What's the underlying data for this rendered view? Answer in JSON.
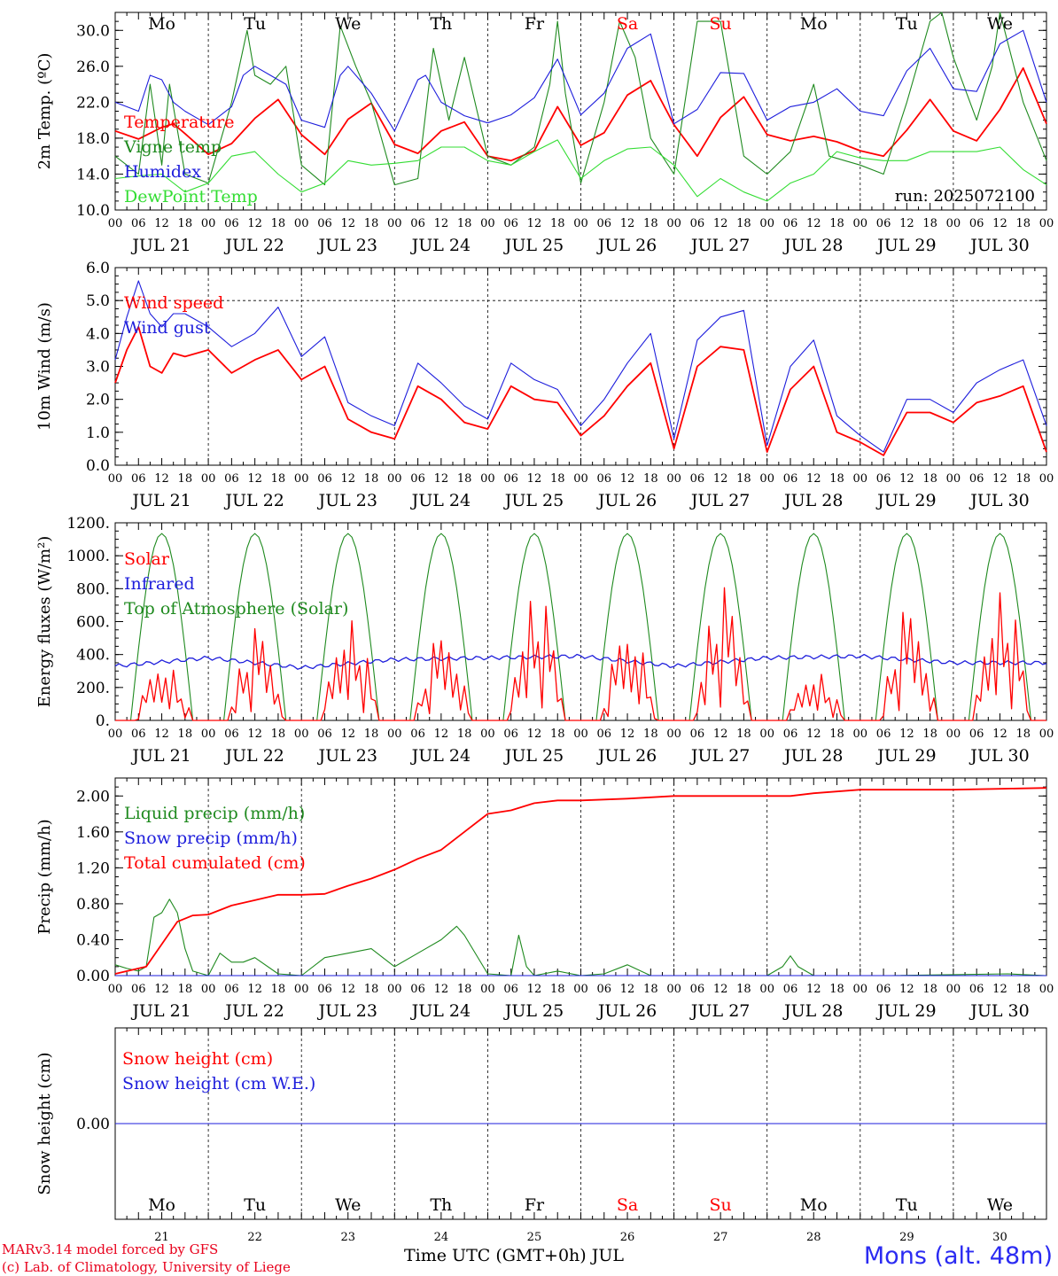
{
  "run_label": "run: 2025072100",
  "footer": {
    "model": "MARv3.14 model forced by GFS",
    "credit": "(c) Lab. of Climatology, University of Liege",
    "time_axis": "Time UTC (GMT+0h) JUL",
    "station": "Mons (alt. 48m)"
  },
  "colors": {
    "red": "#ff0000",
    "green": "#1f8a1f",
    "blue": "#1e1edc",
    "light_green": "#33dd33",
    "weekend": "#ff0000"
  },
  "days": [
    {
      "dow": "Mo",
      "date": "JUL 21",
      "num": "21",
      "weekend": false
    },
    {
      "dow": "Tu",
      "date": "JUL 22",
      "num": "22",
      "weekend": false
    },
    {
      "dow": "We",
      "date": "JUL 23",
      "num": "23",
      "weekend": false
    },
    {
      "dow": "Th",
      "date": "JUL 24",
      "num": "24",
      "weekend": false
    },
    {
      "dow": "Fr",
      "date": "JUL 25",
      "num": "25",
      "weekend": false
    },
    {
      "dow": "Sa",
      "date": "JUL 26",
      "num": "26",
      "weekend": true
    },
    {
      "dow": "Su",
      "date": "JUL 27",
      "num": "27",
      "weekend": true
    },
    {
      "dow": "Mo",
      "date": "JUL 28",
      "num": "28",
      "weekend": false
    },
    {
      "dow": "Tu",
      "date": "JUL 29",
      "num": "29",
      "weekend": false
    },
    {
      "dow": "We",
      "date": "JUL 30",
      "num": "30",
      "weekend": false
    }
  ],
  "hour_ticks": [
    "00",
    "06",
    "12",
    "18"
  ],
  "chart_data": [
    {
      "type": "line",
      "ylabel": "2m Temp. (ºC)",
      "ylim": [
        10,
        32
      ],
      "yticks": [
        "10.0",
        "14.0",
        "18.0",
        "22.0",
        "26.0",
        "30.0"
      ],
      "x_unit": "hours since JUL 21 00 UTC",
      "series": [
        {
          "name": "Temperature",
          "color": "#ff0000",
          "x": [
            0,
            6,
            12,
            15,
            18,
            24,
            30,
            36,
            42,
            48,
            54,
            60,
            66,
            72,
            78,
            84,
            90,
            96,
            102,
            108,
            114,
            120,
            126,
            132,
            138,
            144,
            150,
            156,
            162,
            168,
            174,
            180,
            186,
            192,
            198,
            204,
            210,
            216,
            222,
            228,
            234,
            240
          ],
          "y": [
            18.8,
            17.9,
            19.2,
            19.6,
            18.5,
            16.2,
            17.4,
            20.2,
            22.3,
            18.4,
            16.2,
            20.1,
            21.9,
            17.3,
            16.3,
            18.8,
            19.8,
            16.0,
            15.5,
            16.6,
            21.5,
            17.2,
            18.6,
            22.8,
            24.4,
            19.5,
            16.0,
            20.3,
            22.6,
            18.4,
            17.7,
            18.2,
            17.6,
            16.6,
            16.0,
            18.9,
            22.3,
            18.8,
            17.7,
            21.2,
            25.8,
            19.6
          ]
        },
        {
          "name": "Vigne temp",
          "color": "#1f8a1f",
          "x": [
            0,
            6,
            9,
            12,
            14,
            18,
            24,
            30,
            34,
            36,
            40,
            44,
            48,
            54,
            58,
            62,
            66,
            72,
            78,
            82,
            86,
            90,
            96,
            102,
            108,
            112,
            114,
            116,
            120,
            126,
            130,
            134,
            138,
            144,
            150,
            156,
            162,
            168,
            174,
            180,
            184,
            192,
            198,
            204,
            210,
            213,
            216,
            222,
            226,
            228,
            234,
            240
          ],
          "y": [
            16.0,
            14.0,
            24.0,
            15.0,
            24.0,
            14.0,
            13.0,
            22.0,
            30.0,
            25.0,
            24.0,
            26.0,
            15.0,
            12.8,
            30.5,
            26.0,
            22.0,
            12.8,
            13.5,
            28.0,
            20.0,
            27.0,
            16.0,
            15.0,
            17.0,
            24.0,
            31.0,
            23.0,
            13.0,
            22.0,
            31.0,
            27.0,
            18.0,
            14.0,
            31.0,
            31.0,
            16.0,
            14.0,
            16.5,
            24.0,
            16.0,
            15.0,
            14.0,
            22.0,
            31.0,
            32.0,
            27.0,
            20.0,
            26.0,
            32.0,
            22.0,
            15.5
          ]
        },
        {
          "name": "Humidex",
          "color": "#1e1edc",
          "x": [
            0,
            6,
            9,
            12,
            15,
            18,
            24,
            30,
            33,
            36,
            40,
            44,
            48,
            54,
            58,
            60,
            64,
            66,
            72,
            78,
            80,
            84,
            90,
            96,
            102,
            108,
            114,
            120,
            126,
            132,
            138,
            144,
            150,
            156,
            162,
            168,
            174,
            180,
            186,
            192,
            198,
            204,
            210,
            216,
            222,
            228,
            234,
            240
          ],
          "y": [
            22.0,
            21.0,
            25.0,
            24.5,
            22.0,
            21.0,
            19.5,
            21.5,
            25.0,
            26.0,
            25.0,
            24.0,
            20.0,
            19.2,
            25.0,
            26.0,
            24.0,
            23.0,
            18.8,
            24.5,
            25.0,
            22.0,
            20.5,
            19.7,
            20.6,
            22.5,
            26.8,
            20.6,
            23.0,
            28.0,
            29.6,
            19.6,
            21.2,
            25.3,
            25.2,
            20.0,
            21.5,
            22.0,
            23.5,
            21.0,
            20.5,
            25.5,
            28.0,
            23.5,
            23.2,
            28.5,
            30.0,
            22.0
          ]
        },
        {
          "name": "DewPoint Temp",
          "color": "#33dd33",
          "x": [
            0,
            6,
            12,
            18,
            24,
            30,
            36,
            42,
            48,
            54,
            60,
            66,
            72,
            78,
            84,
            90,
            96,
            102,
            108,
            114,
            120,
            126,
            132,
            138,
            144,
            150,
            156,
            162,
            168,
            174,
            180,
            186,
            192,
            198,
            204,
            210,
            216,
            222,
            228,
            234,
            240
          ],
          "y": [
            13.5,
            13.8,
            14.0,
            12.0,
            13.0,
            16.0,
            16.5,
            14.0,
            12.0,
            13.0,
            15.5,
            15.0,
            15.2,
            15.5,
            17.0,
            17.0,
            15.5,
            15.0,
            16.5,
            17.8,
            13.5,
            15.5,
            16.8,
            17.0,
            15.0,
            11.5,
            13.5,
            12.0,
            11.0,
            13.0,
            14.0,
            16.5,
            15.8,
            15.5,
            15.5,
            16.5,
            16.5,
            16.5,
            17.0,
            14.5,
            12.8
          ]
        }
      ]
    },
    {
      "type": "line",
      "ylabel": "10m Wind (m/s)",
      "ylim": [
        0,
        6
      ],
      "yticks": [
        "0.0",
        "1.0",
        "2.0",
        "3.0",
        "4.0",
        "5.0",
        "6.0"
      ],
      "ref_line": 5.0,
      "x_unit": "hours since JUL 21 00 UTC",
      "series": [
        {
          "name": "Wind speed",
          "color": "#ff0000",
          "x": [
            0,
            3,
            6,
            9,
            12,
            15,
            18,
            24,
            30,
            36,
            42,
            48,
            54,
            60,
            66,
            72,
            78,
            84,
            90,
            96,
            102,
            108,
            114,
            120,
            126,
            132,
            138,
            144,
            150,
            156,
            162,
            168,
            174,
            180,
            186,
            192,
            198,
            204,
            210,
            216,
            222,
            228,
            234,
            240
          ],
          "y": [
            2.5,
            3.5,
            4.2,
            3.0,
            2.8,
            3.4,
            3.3,
            3.5,
            2.8,
            3.2,
            3.5,
            2.6,
            3.0,
            1.4,
            1.0,
            0.8,
            2.4,
            2.0,
            1.3,
            1.1,
            2.4,
            2.0,
            1.9,
            0.9,
            1.5,
            2.4,
            3.1,
            0.5,
            3.0,
            3.6,
            3.5,
            0.4,
            2.3,
            3.0,
            1.0,
            0.7,
            0.3,
            1.6,
            1.6,
            1.3,
            1.9,
            2.1,
            2.4,
            0.4
          ]
        },
        {
          "name": "Wind gust",
          "color": "#1e1edc",
          "x": [
            0,
            3,
            6,
            9,
            12,
            15,
            18,
            24,
            30,
            36,
            42,
            48,
            54,
            60,
            66,
            72,
            78,
            84,
            90,
            96,
            102,
            108,
            114,
            120,
            126,
            132,
            138,
            144,
            150,
            156,
            162,
            168,
            174,
            180,
            186,
            192,
            198,
            204,
            210,
            216,
            222,
            228,
            234,
            240
          ],
          "y": [
            3.2,
            4.5,
            5.6,
            4.6,
            4.2,
            4.6,
            4.6,
            4.2,
            3.6,
            4.0,
            4.8,
            3.3,
            3.9,
            1.9,
            1.5,
            1.2,
            3.1,
            2.5,
            1.8,
            1.4,
            3.1,
            2.6,
            2.3,
            1.2,
            2.0,
            3.1,
            4.0,
            0.8,
            3.8,
            4.5,
            4.7,
            0.6,
            3.0,
            3.8,
            1.5,
            0.9,
            0.4,
            2.0,
            2.0,
            1.6,
            2.5,
            2.9,
            3.2,
            1.2
          ]
        }
      ]
    },
    {
      "type": "line",
      "ylabel": "Energy fluxes (W/m²)",
      "ylim": [
        0,
        1200
      ],
      "yticks": [
        "0.",
        "200.",
        "400.",
        "600.",
        "800.",
        "1000.",
        "1200."
      ],
      "x_unit": "hours since JUL 21 00 UTC",
      "series": [
        {
          "name": "Solar",
          "color": "#ff0000",
          "daily_peaks": [
            370,
            560,
            640,
            540,
            800,
            580,
            810,
            310,
            690,
            820
          ]
        },
        {
          "name": "Infrared",
          "color": "#1e1edc",
          "baseline": [
            330,
            380,
            320,
            370,
            380,
            390,
            330,
            380,
            390,
            350
          ]
        },
        {
          "name": "Top of Atmosphere (Solar)",
          "color": "#1f8a1f",
          "peak": 1135,
          "sunrise_h": 4,
          "sunset_h": 20
        }
      ]
    },
    {
      "type": "line",
      "ylabel": "Precip (mm/h)",
      "ylim": [
        0,
        2.2
      ],
      "yticks": [
        "0.00",
        "0.40",
        "0.80",
        "1.20",
        "1.60",
        "2.00"
      ],
      "x_unit": "hours since JUL 21 00 UTC",
      "series": [
        {
          "name": "Liquid precip (mm/h)",
          "color": "#1f8a1f",
          "x": [
            0,
            3,
            6,
            8,
            10,
            12,
            14,
            16,
            18,
            20,
            24,
            27,
            30,
            33,
            36,
            42,
            48,
            54,
            60,
            66,
            72,
            78,
            84,
            88,
            90,
            96,
            102,
            104,
            106,
            108,
            114,
            120,
            126,
            132,
            138,
            144,
            150,
            156,
            168,
            172,
            174,
            176,
            180,
            200,
            230,
            240
          ],
          "y": [
            0.12,
            0.08,
            0.05,
            0.1,
            0.65,
            0.7,
            0.85,
            0.7,
            0.3,
            0.05,
            0.0,
            0.25,
            0.15,
            0.15,
            0.2,
            0.02,
            0.0,
            0.2,
            0.25,
            0.3,
            0.1,
            0.25,
            0.4,
            0.55,
            0.45,
            0.02,
            0.0,
            0.45,
            0.1,
            0.0,
            0.05,
            0.0,
            0.02,
            0.12,
            0.0,
            0.0,
            0.0,
            0.0,
            0.0,
            0.1,
            0.22,
            0.1,
            0.0,
            0.0,
            0.02,
            0.0
          ]
        },
        {
          "name": "Snow precip (mm/h)",
          "color": "#1e1edc",
          "x": [
            0,
            240
          ],
          "y": [
            0,
            0
          ]
        },
        {
          "name": "Total cumulated (cm)",
          "color": "#ff0000",
          "x": [
            0,
            6,
            8,
            12,
            16,
            20,
            24,
            30,
            36,
            42,
            48,
            54,
            60,
            66,
            72,
            78,
            84,
            90,
            96,
            102,
            108,
            114,
            120,
            126,
            132,
            144,
            156,
            168,
            174,
            180,
            192,
            204,
            216,
            228,
            240
          ],
          "y": [
            0.02,
            0.08,
            0.1,
            0.35,
            0.6,
            0.67,
            0.68,
            0.78,
            0.84,
            0.9,
            0.9,
            0.91,
            1.0,
            1.08,
            1.18,
            1.3,
            1.4,
            1.6,
            1.8,
            1.84,
            1.92,
            1.95,
            1.95,
            1.96,
            1.97,
            2.0,
            2.0,
            2.0,
            2.0,
            2.03,
            2.07,
            2.07,
            2.07,
            2.08,
            2.09
          ]
        }
      ]
    },
    {
      "type": "line",
      "ylabel": "Snow height (cm)",
      "ylim": [
        -1,
        1
      ],
      "yticks": [
        "0.00"
      ],
      "x_unit": "hours since JUL 21 00 UTC",
      "series": [
        {
          "name": "Snow height (cm)",
          "color": "#ff0000",
          "x": [
            0,
            240
          ],
          "y": [
            0,
            0
          ]
        },
        {
          "name": "Snow height (cm W.E.)",
          "color": "#1e1edc",
          "x": [
            0,
            240
          ],
          "y": [
            0,
            0
          ]
        }
      ]
    }
  ]
}
